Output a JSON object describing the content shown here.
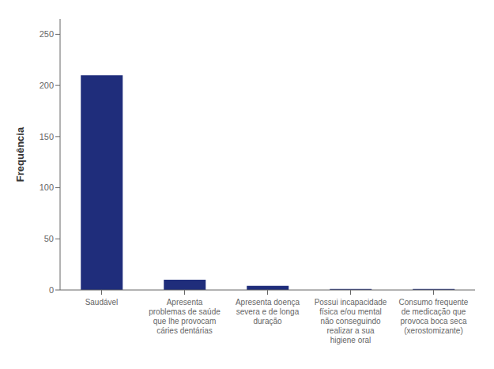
{
  "chart_data": {
    "type": "bar",
    "categories": [
      "Saudável",
      "Apresenta\nproblemas de saúde\nque lhe provocam\ncáries dentárias",
      "Apresenta doença\nsevera e de longa\nduração",
      "Possui incapacidade\nfísica e/ou mental\nnão conseguindo\nrealizar a sua\nhigiene oral",
      "Consumo frequente\nde medicação que\nprovoca boca seca\n(xerostomizante)"
    ],
    "values": [
      210,
      10,
      4,
      1,
      1
    ],
    "color": "#1F2D7B",
    "ylabel": "Frequência",
    "ylim": [
      0,
      265
    ],
    "yticks": [
      0,
      50,
      100,
      150,
      200,
      250
    ],
    "grid": false
  }
}
